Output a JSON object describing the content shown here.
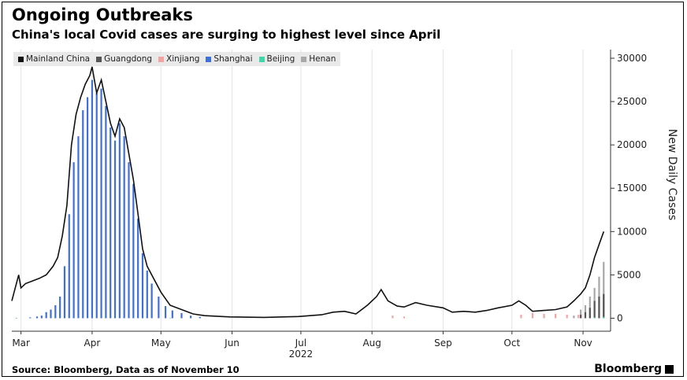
{
  "header": {
    "title": "Ongoing Outbreaks",
    "subtitle": "China's local Covid cases are surging to highest level since April"
  },
  "footer": {
    "source": "Source: Bloomberg, Data as of November 10",
    "brand": "Bloomberg"
  },
  "chart_data": {
    "type": "bar",
    "title": "Ongoing Outbreaks",
    "subtitle": "China's local Covid cases are surging to highest level since April",
    "ylabel": "New Daily Cases",
    "xlabel": "",
    "ylim": [
      -1500,
      31000
    ],
    "xlim": [
      "2022-02-25",
      "2022-11-13"
    ],
    "y_ticks": [
      0,
      5000,
      10000,
      15000,
      20000,
      25000,
      30000
    ],
    "x_ticks": [
      {
        "label": "Mar",
        "date": "2022-03-01"
      },
      {
        "label": "Apr",
        "date": "2022-04-01"
      },
      {
        "label": "May",
        "date": "2022-05-01"
      },
      {
        "label": "Jun",
        "date": "2022-06-01"
      },
      {
        "label": "Jul",
        "date": "2022-07-01"
      },
      {
        "label": "Aug",
        "date": "2022-08-01"
      },
      {
        "label": "Sep",
        "date": "2022-09-01"
      },
      {
        "label": "Oct",
        "date": "2022-10-01"
      },
      {
        "label": "Nov",
        "date": "2022-11-01"
      }
    ],
    "year_label": "2022",
    "grid": "vertical",
    "legend_position": "top-left",
    "colors": {
      "Mainland China": "#111111",
      "Guangdong": "#555555",
      "Xinjiang": "#f4a3a3",
      "Shanghai": "#3f6fd8",
      "Beijing": "#3fd6a8",
      "Henan": "#a8a8a8"
    },
    "series": [
      {
        "name": "Mainland China",
        "style": "line",
        "points": [
          [
            "2022-02-25",
            2000
          ],
          [
            "2022-02-28",
            5000
          ],
          [
            "2022-03-01",
            3500
          ],
          [
            "2022-03-03",
            4000
          ],
          [
            "2022-03-06",
            4300
          ],
          [
            "2022-03-09",
            4600
          ],
          [
            "2022-03-12",
            5000
          ],
          [
            "2022-03-15",
            6000
          ],
          [
            "2022-03-17",
            7000
          ],
          [
            "2022-03-19",
            9500
          ],
          [
            "2022-03-21",
            13000
          ],
          [
            "2022-03-23",
            20000
          ],
          [
            "2022-03-25",
            23500
          ],
          [
            "2022-03-27",
            25500
          ],
          [
            "2022-03-29",
            27000
          ],
          [
            "2022-03-31",
            28000
          ],
          [
            "2022-04-01",
            29000
          ],
          [
            "2022-04-03",
            26000
          ],
          [
            "2022-04-05",
            27500
          ],
          [
            "2022-04-07",
            25000
          ],
          [
            "2022-04-09",
            22500
          ],
          [
            "2022-04-11",
            21000
          ],
          [
            "2022-04-13",
            23000
          ],
          [
            "2022-04-15",
            22000
          ],
          [
            "2022-04-17",
            19000
          ],
          [
            "2022-04-19",
            16000
          ],
          [
            "2022-04-21",
            12000
          ],
          [
            "2022-04-23",
            8000
          ],
          [
            "2022-04-25",
            6000
          ],
          [
            "2022-04-28",
            4500
          ],
          [
            "2022-05-01",
            3000
          ],
          [
            "2022-05-05",
            1500
          ],
          [
            "2022-05-10",
            1000
          ],
          [
            "2022-05-15",
            500
          ],
          [
            "2022-05-20",
            300
          ],
          [
            "2022-05-31",
            150
          ],
          [
            "2022-06-15",
            100
          ],
          [
            "2022-06-30",
            200
          ],
          [
            "2022-07-05",
            300
          ],
          [
            "2022-07-10",
            400
          ],
          [
            "2022-07-15",
            700
          ],
          [
            "2022-07-20",
            800
          ],
          [
            "2022-07-25",
            500
          ],
          [
            "2022-07-30",
            1500
          ],
          [
            "2022-08-03",
            2500
          ],
          [
            "2022-08-05",
            3300
          ],
          [
            "2022-08-08",
            2000
          ],
          [
            "2022-08-12",
            1400
          ],
          [
            "2022-08-15",
            1300
          ],
          [
            "2022-08-20",
            1800
          ],
          [
            "2022-08-25",
            1500
          ],
          [
            "2022-09-01",
            1200
          ],
          [
            "2022-09-05",
            700
          ],
          [
            "2022-09-10",
            800
          ],
          [
            "2022-09-15",
            700
          ],
          [
            "2022-09-20",
            900
          ],
          [
            "2022-09-25",
            1200
          ],
          [
            "2022-10-01",
            1500
          ],
          [
            "2022-10-04",
            2000
          ],
          [
            "2022-10-07",
            1500
          ],
          [
            "2022-10-10",
            800
          ],
          [
            "2022-10-15",
            900
          ],
          [
            "2022-10-20",
            1000
          ],
          [
            "2022-10-25",
            1300
          ],
          [
            "2022-10-28",
            2000
          ],
          [
            "2022-10-31",
            2800
          ],
          [
            "2022-11-02",
            3500
          ],
          [
            "2022-11-04",
            5000
          ],
          [
            "2022-11-06",
            7000
          ],
          [
            "2022-11-08",
            8500
          ],
          [
            "2022-11-10",
            10000
          ]
        ]
      },
      {
        "name": "Shanghai",
        "style": "bars",
        "points": [
          [
            "2022-02-27",
            50
          ],
          [
            "2022-03-05",
            100
          ],
          [
            "2022-03-08",
            200
          ],
          [
            "2022-03-10",
            300
          ],
          [
            "2022-03-12",
            700
          ],
          [
            "2022-03-14",
            1000
          ],
          [
            "2022-03-16",
            1500
          ],
          [
            "2022-03-18",
            2500
          ],
          [
            "2022-03-20",
            6000
          ],
          [
            "2022-03-22",
            12000
          ],
          [
            "2022-03-24",
            18000
          ],
          [
            "2022-03-26",
            21000
          ],
          [
            "2022-03-28",
            24000
          ],
          [
            "2022-03-30",
            25500
          ],
          [
            "2022-04-01",
            27500
          ],
          [
            "2022-04-03",
            26000
          ],
          [
            "2022-04-05",
            26500
          ],
          [
            "2022-04-07",
            24500
          ],
          [
            "2022-04-09",
            22000
          ],
          [
            "2022-04-11",
            20500
          ],
          [
            "2022-04-13",
            22500
          ],
          [
            "2022-04-15",
            21000
          ],
          [
            "2022-04-17",
            18000
          ],
          [
            "2022-04-19",
            15500
          ],
          [
            "2022-04-21",
            11500
          ],
          [
            "2022-04-23",
            7500
          ],
          [
            "2022-04-25",
            5500
          ],
          [
            "2022-04-27",
            4000
          ],
          [
            "2022-04-30",
            2500
          ],
          [
            "2022-05-03",
            1400
          ],
          [
            "2022-05-06",
            900
          ],
          [
            "2022-05-10",
            600
          ],
          [
            "2022-05-14",
            300
          ],
          [
            "2022-05-18",
            150
          ]
        ]
      },
      {
        "name": "Henan",
        "style": "bars",
        "points": [
          [
            "2022-10-28",
            300
          ],
          [
            "2022-10-31",
            1000
          ],
          [
            "2022-11-02",
            1500
          ],
          [
            "2022-11-04",
            2500
          ],
          [
            "2022-11-06",
            3500
          ],
          [
            "2022-11-08",
            4800
          ],
          [
            "2022-11-10",
            6500
          ]
        ]
      },
      {
        "name": "Guangdong",
        "style": "bars",
        "points": [
          [
            "2022-10-31",
            400
          ],
          [
            "2022-11-02",
            700
          ],
          [
            "2022-11-04",
            1200
          ],
          [
            "2022-11-06",
            2000
          ],
          [
            "2022-11-08",
            2500
          ],
          [
            "2022-11-10",
            2800
          ]
        ]
      },
      {
        "name": "Xinjiang",
        "style": "bars",
        "points": [
          [
            "2022-08-10",
            300
          ],
          [
            "2022-08-15",
            200
          ],
          [
            "2022-10-05",
            400
          ],
          [
            "2022-10-10",
            600
          ],
          [
            "2022-10-15",
            500
          ],
          [
            "2022-10-20",
            500
          ],
          [
            "2022-10-25",
            400
          ],
          [
            "2022-10-30",
            400
          ]
        ]
      },
      {
        "name": "Beijing",
        "style": "bars",
        "points": [
          [
            "2022-05-05",
            50
          ],
          [
            "2022-11-06",
            100
          ],
          [
            "2022-11-10",
            150
          ]
        ]
      }
    ]
  }
}
